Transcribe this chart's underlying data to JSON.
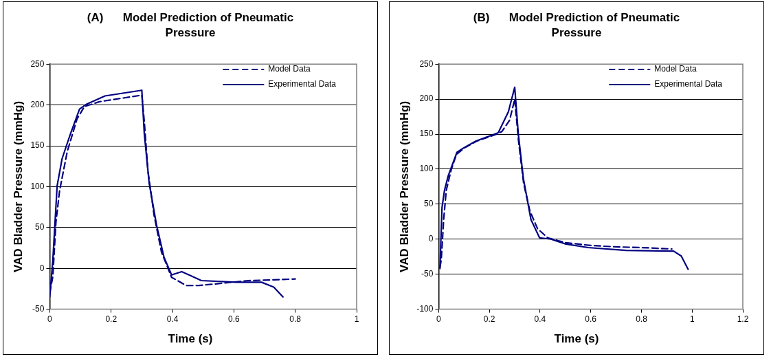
{
  "chart_data": [
    {
      "type": "line",
      "title": "(A)      Model Prediction of Pneumatic Pressure",
      "xlabel": "Time (s)",
      "ylabel": "VAD Bladder Pressure (mmHg)",
      "xlim": [
        0,
        1
      ],
      "xticks": [
        0,
        0.2,
        0.4,
        0.6,
        0.8,
        1
      ],
      "ylim": [
        -50,
        250
      ],
      "yticks": [
        -50,
        0,
        50,
        100,
        150,
        200,
        250
      ],
      "grid": "y",
      "legend": "top right",
      "marker": "none",
      "series": [
        {
          "name": "Model Data",
          "color": "#000080",
          "line_style": "dashed",
          "x": [
            0,
            0.01,
            0.02,
            0.032,
            0.057,
            0.089,
            0.113,
            0.162,
            0.3,
            0.308,
            0.32,
            0.34,
            0.364,
            0.397,
            0.445,
            0.486,
            0.567,
            0.648,
            0.73,
            0.8
          ],
          "values": [
            -30,
            -10,
            56,
            95,
            143,
            183,
            198,
            204,
            212,
            180,
            119,
            65,
            20,
            -11,
            -21,
            -21,
            -18,
            -15,
            -14,
            -13
          ]
        },
        {
          "name": "Experimental Data",
          "color": "#000080",
          "line_style": "solid",
          "x": [
            0,
            0.01,
            0.024,
            0.04,
            0.065,
            0.097,
            0.12,
            0.18,
            0.3,
            0.308,
            0.324,
            0.348,
            0.372,
            0.397,
            0.43,
            0.46,
            0.494,
            0.61,
            0.69,
            0.73,
            0.76
          ],
          "values": [
            -35,
            10,
            101,
            134,
            162,
            195,
            201,
            211,
            218,
            165,
            104,
            53,
            14,
            -8,
            -4,
            -9,
            -15,
            -17,
            -17,
            -23,
            -35
          ]
        }
      ]
    },
    {
      "type": "line",
      "title": "(B)      Model Prediction of Pneumatic Pressure",
      "xlabel": "Time (s)",
      "ylabel": "VAD Bladder Pressure (mmHg)",
      "xlim": [
        0,
        1.2
      ],
      "xticks": [
        0,
        0.2,
        0.4,
        0.6,
        0.8,
        1,
        1.2
      ],
      "ylim": [
        -100,
        250
      ],
      "yticks": [
        -100,
        -50,
        0,
        50,
        100,
        150,
        200,
        250
      ],
      "grid": "y",
      "legend": "top right",
      "marker": "none",
      "series": [
        {
          "name": "Model Data",
          "color": "#000080",
          "line_style": "dashed",
          "x": [
            0.005,
            0.01,
            0.02,
            0.03,
            0.05,
            0.07,
            0.1,
            0.15,
            0.23,
            0.25,
            0.28,
            0.3,
            0.315,
            0.335,
            0.36,
            0.39,
            0.43,
            0.5,
            0.6,
            0.7,
            0.8,
            0.92
          ],
          "values": [
            -40,
            -30,
            30,
            70,
            100,
            121,
            130,
            140,
            150,
            154,
            170,
            200,
            140,
            80,
            40,
            15,
            2,
            -5,
            -9,
            -11,
            -12,
            -14
          ]
        },
        {
          "name": "Experimental Data",
          "color": "#000080",
          "line_style": "solid",
          "x": [
            0.005,
            0.013,
            0.023,
            0.038,
            0.072,
            0.097,
            0.146,
            0.235,
            0.275,
            0.3,
            0.314,
            0.334,
            0.364,
            0.398,
            0.443,
            0.502,
            0.59,
            0.74,
            0.927,
            0.957,
            0.984
          ],
          "values": [
            -42,
            45,
            70,
            91,
            124,
            130,
            140,
            152,
            182,
            217,
            151,
            87,
            28,
            2,
            0,
            -7,
            -12,
            -16,
            -17,
            -24,
            -43
          ]
        }
      ]
    }
  ]
}
